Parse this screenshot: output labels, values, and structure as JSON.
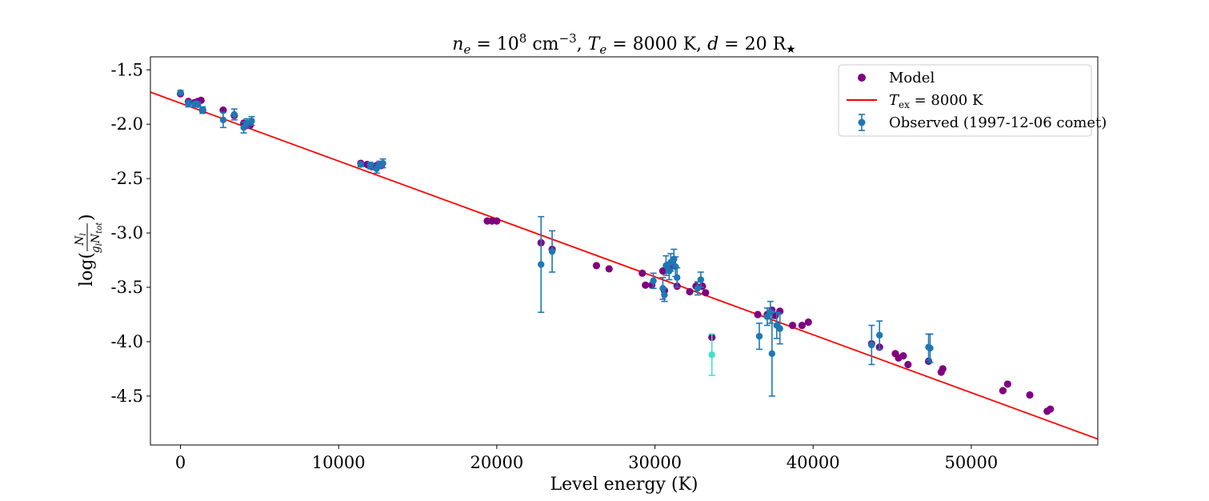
{
  "chart_data": {
    "type": "scatter",
    "title": "n_e = 10^8 cm^-3,   T_e = 8000 K,   d = 20 R★",
    "title_parts": {
      "ne_sym": "n",
      "ne_sub": "e",
      "ne_eq": " = 10",
      "ne_exp": "8",
      "ne_unit": " cm",
      "ne_unit_exp": "−3",
      "te_sym": "T",
      "te_sub": "e",
      "te_val": " = 8000 K,",
      "d_sym": "d",
      "d_val": " = 20 R",
      "star": "★"
    },
    "xlabel": "Level energy (K)",
    "ylabel": "log(N_l / (g_l N_tot))",
    "ylabel_parts": {
      "log": "log(",
      "num": "N",
      "num_sub": "l",
      "den": "g",
      "den_sub": "l",
      "den2": "N",
      "den2_sub": "tot",
      "close": ")"
    },
    "xlim": [
      -1900,
      58000
    ],
    "ylim": [
      -4.95,
      -1.38
    ],
    "xticks": [
      0,
      10000,
      20000,
      30000,
      40000,
      50000
    ],
    "yticks": [
      -1.5,
      -2.0,
      -2.5,
      -3.0,
      -3.5,
      -4.0,
      -4.5
    ],
    "xtick_labels": [
      "0",
      "10000",
      "20000",
      "30000",
      "40000",
      "50000"
    ],
    "ytick_labels": [
      "-1.5",
      "-2.0",
      "-2.5",
      "-3.0",
      "-3.5",
      "-4.0",
      "-4.5"
    ],
    "legend_position": "top-right",
    "colors": {
      "model": "#800080",
      "line": "#ff0000",
      "observed": "#1f77b4",
      "outlier": "#40e0d0"
    },
    "legend": {
      "model": "Model",
      "line_sym": "T",
      "line_sub": "ex",
      "line_val": " = 8000 K",
      "observed": "Observed (1997-12-06 comet)"
    },
    "line": {
      "name": "T_ex = 8000 K",
      "x": [
        -1900,
        58000
      ],
      "y": [
        -1.705,
        -4.895
      ]
    },
    "model": {
      "name": "Model",
      "x": [
        0,
        500,
        900,
        1100,
        1300,
        1400,
        2700,
        3400,
        4000,
        4200,
        4400,
        11400,
        11800,
        12100,
        12400,
        12700,
        19400,
        19700,
        20000,
        22800,
        23500,
        26300,
        27100,
        29200,
        29400,
        29800,
        30500,
        30600,
        30900,
        31100,
        31400,
        32200,
        32600,
        33000,
        33200,
        33600,
        36500,
        37100,
        37400,
        37600,
        37900,
        38700,
        39300,
        39700,
        43700,
        44200,
        45200,
        45400,
        45700,
        46000,
        47300,
        48100,
        48200,
        52000,
        52300,
        53700,
        54800,
        55000
      ],
      "y": [
        -1.72,
        -1.79,
        -1.8,
        -1.79,
        -1.78,
        -1.87,
        -1.87,
        -1.92,
        -1.99,
        -2.01,
        -2.01,
        -2.36,
        -2.37,
        -2.39,
        -2.38,
        -2.38,
        -2.89,
        -2.89,
        -2.89,
        -3.09,
        -3.15,
        -3.3,
        -3.33,
        -3.37,
        -3.48,
        -3.48,
        -3.35,
        -3.53,
        -3.34,
        -3.29,
        -3.49,
        -3.54,
        -3.49,
        -3.49,
        -3.55,
        -3.96,
        -3.75,
        -3.75,
        -3.71,
        -3.76,
        -3.72,
        -3.85,
        -3.85,
        -3.82,
        -4.02,
        -4.05,
        -4.11,
        -4.15,
        -4.13,
        -4.21,
        -4.18,
        -4.28,
        -4.25,
        -4.45,
        -4.39,
        -4.49,
        -4.64,
        -4.62
      ]
    },
    "observed": {
      "name": "Observed (1997-12-06 comet)",
      "x": [
        0,
        500,
        900,
        1000,
        1100,
        1400,
        2700,
        3400,
        4000,
        4200,
        4500,
        11400,
        12000,
        12400,
        12600,
        12800,
        22800,
        23500,
        29900,
        30500,
        30600,
        30700,
        30900,
        31000,
        31200,
        31300,
        31400,
        32700,
        32900,
        36600,
        37100,
        37300,
        37400,
        37700,
        37900,
        43700,
        44200,
        47300,
        47400
      ],
      "y": [
        -1.71,
        -1.81,
        -1.82,
        -1.81,
        -1.82,
        -1.87,
        -1.96,
        -1.91,
        -2.03,
        -1.99,
        -1.97,
        -2.37,
        -2.38,
        -2.41,
        -2.37,
        -2.36,
        -3.29,
        -3.17,
        -3.44,
        -3.51,
        -3.57,
        -3.3,
        -3.35,
        -3.27,
        -3.24,
        -3.31,
        -3.41,
        -3.51,
        -3.43,
        -3.95,
        -3.77,
        -3.73,
        -4.11,
        -3.85,
        -3.88,
        -4.03,
        -3.94,
        -4.05,
        -4.06
      ],
      "yerr": [
        0.02,
        0.03,
        0.02,
        0.02,
        0.02,
        0.03,
        0.07,
        0.05,
        0.05,
        0.04,
        0.04,
        0.02,
        0.03,
        0.04,
        0.03,
        0.04,
        0.44,
        0.19,
        0.07,
        0.1,
        0.06,
        0.09,
        0.08,
        0.08,
        0.09,
        0.09,
        0.09,
        0.06,
        0.07,
        0.12,
        0.08,
        0.1,
        0.39,
        0.12,
        0.14,
        0.18,
        0.13,
        0.12,
        0.13
      ]
    },
    "observed_outlier": {
      "x": [
        33600
      ],
      "y": [
        -4.12
      ],
      "yerr": [
        0.19
      ]
    }
  }
}
